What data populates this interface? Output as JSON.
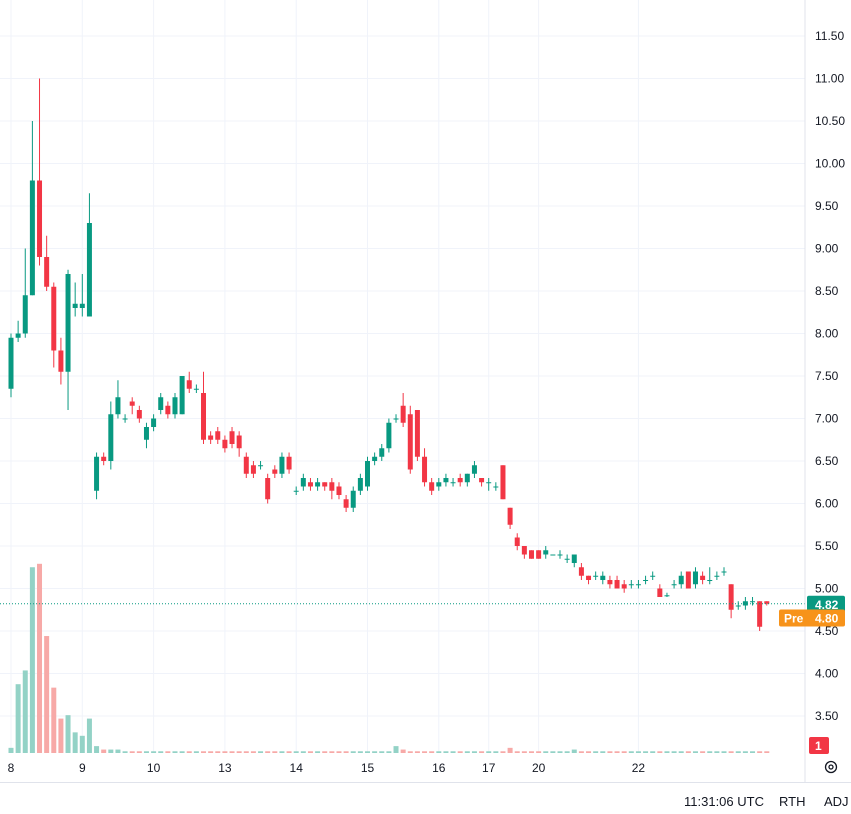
{
  "chart_data": {
    "type": "candlestick",
    "y_ticks": [
      "11.50",
      "11.00",
      "10.50",
      "10.00",
      "9.50",
      "9.00",
      "8.50",
      "8.00",
      "7.50",
      "7.00",
      "6.50",
      "6.00",
      "5.50",
      "5.00",
      "4.50",
      "4.00",
      "3.50"
    ],
    "x_labels": [
      {
        "text": "8",
        "i": 0
      },
      {
        "text": "9",
        "i": 10
      },
      {
        "text": "10",
        "i": 20
      },
      {
        "text": "13",
        "i": 30
      },
      {
        "text": "14",
        "i": 40
      },
      {
        "text": "15",
        "i": 50
      },
      {
        "text": "16",
        "i": 60
      },
      {
        "text": "17",
        "i": 67
      },
      {
        "text": "20",
        "i": 74
      },
      {
        "text": "22",
        "i": 88
      }
    ],
    "ylim": [
      3.3,
      11.7
    ],
    "candles": [
      [
        7.35,
        7.95,
        7.25,
        8.0
      ],
      [
        7.95,
        8.0,
        7.9,
        8.15
      ],
      [
        8.0,
        8.45,
        7.95,
        9.0
      ],
      [
        8.45,
        9.8,
        8.45,
        10.5
      ],
      [
        9.8,
        8.9,
        8.8,
        11.0
      ],
      [
        8.9,
        8.55,
        8.5,
        9.15
      ],
      [
        8.55,
        7.8,
        7.6,
        8.6
      ],
      [
        7.8,
        7.55,
        7.4,
        7.95
      ],
      [
        7.55,
        8.7,
        7.1,
        8.75
      ],
      [
        8.3,
        8.35,
        8.2,
        8.6
      ],
      [
        8.3,
        8.35,
        8.2,
        8.7
      ],
      [
        8.2,
        9.3,
        8.2,
        9.65
      ],
      [
        6.15,
        6.55,
        6.05,
        6.6
      ],
      [
        6.55,
        6.5,
        6.45,
        6.6
      ],
      [
        6.5,
        7.05,
        6.4,
        7.2
      ],
      [
        7.05,
        7.25,
        7.0,
        7.45
      ],
      [
        7.0,
        7.0,
        6.95,
        7.05
      ],
      [
        7.2,
        7.15,
        7.05,
        7.25
      ],
      [
        7.1,
        7.0,
        6.95,
        7.15
      ],
      [
        6.75,
        6.9,
        6.65,
        6.95
      ],
      [
        6.9,
        7.0,
        6.85,
        7.05
      ],
      [
        7.1,
        7.25,
        7.05,
        7.3
      ],
      [
        7.15,
        7.05,
        7.0,
        7.2
      ],
      [
        7.05,
        7.25,
        7.0,
        7.3
      ],
      [
        7.05,
        7.5,
        7.05,
        7.5
      ],
      [
        7.45,
        7.35,
        7.3,
        7.55
      ],
      [
        7.35,
        7.35,
        7.3,
        7.4
      ],
      [
        7.3,
        6.75,
        6.7,
        7.55
      ],
      [
        6.8,
        6.75,
        6.7,
        6.85
      ],
      [
        6.85,
        6.75,
        6.7,
        6.9
      ],
      [
        6.75,
        6.65,
        6.6,
        6.8
      ],
      [
        6.85,
        6.7,
        6.65,
        6.9
      ],
      [
        6.8,
        6.65,
        6.55,
        6.85
      ],
      [
        6.55,
        6.35,
        6.3,
        6.6
      ],
      [
        6.45,
        6.35,
        6.3,
        6.5
      ],
      [
        6.45,
        6.45,
        6.4,
        6.5
      ],
      [
        6.3,
        6.05,
        6.0,
        6.35
      ],
      [
        6.4,
        6.35,
        6.3,
        6.45
      ],
      [
        6.35,
        6.55,
        6.3,
        6.6
      ],
      [
        6.55,
        6.4,
        6.35,
        6.6
      ],
      [
        6.15,
        6.15,
        6.1,
        6.2
      ],
      [
        6.2,
        6.3,
        6.15,
        6.35
      ],
      [
        6.25,
        6.2,
        6.15,
        6.3
      ],
      [
        6.2,
        6.25,
        6.15,
        6.3
      ],
      [
        6.25,
        6.2,
        6.15,
        6.25
      ],
      [
        6.25,
        6.15,
        6.05,
        6.3
      ],
      [
        6.2,
        6.1,
        6.05,
        6.25
      ],
      [
        6.05,
        5.95,
        5.9,
        6.1
      ],
      [
        5.95,
        6.15,
        5.9,
        6.2
      ],
      [
        6.15,
        6.3,
        6.1,
        6.35
      ],
      [
        6.2,
        6.5,
        6.15,
        6.55
      ],
      [
        6.5,
        6.55,
        6.45,
        6.6
      ],
      [
        6.55,
        6.65,
        6.5,
        6.7
      ],
      [
        6.65,
        6.95,
        6.6,
        7.0
      ],
      [
        7.0,
        7.0,
        6.95,
        7.05
      ],
      [
        7.15,
        6.95,
        6.9,
        7.3
      ],
      [
        7.05,
        6.4,
        6.35,
        7.15
      ],
      [
        7.1,
        6.55,
        6.5,
        7.1
      ],
      [
        6.55,
        6.25,
        6.2,
        6.65
      ],
      [
        6.25,
        6.15,
        6.1,
        6.3
      ],
      [
        6.2,
        6.25,
        6.15,
        6.3
      ],
      [
        6.25,
        6.3,
        6.2,
        6.35
      ],
      [
        6.25,
        6.25,
        6.2,
        6.3
      ],
      [
        6.3,
        6.25,
        6.2,
        6.35
      ],
      [
        6.25,
        6.35,
        6.2,
        6.35
      ],
      [
        6.35,
        6.45,
        6.3,
        6.5
      ],
      [
        6.3,
        6.25,
        6.2,
        6.3
      ],
      [
        6.25,
        6.25,
        6.15,
        6.3
      ],
      [
        6.2,
        6.2,
        6.15,
        6.25
      ],
      [
        6.45,
        6.05,
        6.05,
        6.45
      ],
      [
        5.95,
        5.75,
        5.7,
        5.95
      ],
      [
        5.6,
        5.5,
        5.45,
        5.65
      ],
      [
        5.5,
        5.4,
        5.35,
        5.5
      ],
      [
        5.45,
        5.35,
        5.35,
        5.45
      ],
      [
        5.45,
        5.35,
        5.35,
        5.45
      ],
      [
        5.4,
        5.45,
        5.35,
        5.5
      ],
      [
        5.4,
        5.4,
        5.4,
        5.4
      ],
      [
        5.4,
        5.4,
        5.35,
        5.45
      ],
      [
        5.35,
        5.35,
        5.3,
        5.4
      ],
      [
        5.3,
        5.4,
        5.25,
        5.4
      ],
      [
        5.25,
        5.15,
        5.1,
        5.3
      ],
      [
        5.15,
        5.1,
        5.05,
        5.15
      ],
      [
        5.15,
        5.15,
        5.1,
        5.2
      ],
      [
        5.1,
        5.15,
        5.05,
        5.2
      ],
      [
        5.1,
        5.05,
        5.0,
        5.15
      ],
      [
        5.1,
        5.0,
        5.0,
        5.15
      ],
      [
        5.05,
        5.0,
        4.95,
        5.1
      ],
      [
        5.05,
        5.05,
        5.0,
        5.1
      ],
      [
        5.05,
        5.05,
        5.0,
        5.1
      ],
      [
        5.1,
        5.1,
        5.05,
        5.15
      ],
      [
        5.15,
        5.15,
        5.1,
        5.2
      ],
      [
        5.0,
        4.9,
        4.9,
        5.05
      ],
      [
        4.92,
        4.92,
        4.9,
        4.95
      ],
      [
        5.05,
        5.05,
        5.0,
        5.1
      ],
      [
        5.05,
        5.15,
        5.0,
        5.2
      ],
      [
        5.2,
        5.0,
        5.0,
        5.2
      ],
      [
        5.05,
        5.2,
        5.0,
        5.25
      ],
      [
        5.15,
        5.1,
        5.05,
        5.2
      ],
      [
        5.1,
        5.1,
        5.05,
        5.25
      ],
      [
        5.15,
        5.15,
        5.1,
        5.2
      ],
      [
        5.2,
        5.2,
        5.15,
        5.25
      ],
      [
        5.05,
        4.75,
        4.65,
        5.05
      ],
      [
        4.8,
        4.8,
        4.75,
        4.85
      ],
      [
        4.8,
        4.85,
        4.75,
        4.9
      ],
      [
        4.85,
        4.85,
        4.8,
        4.9
      ],
      [
        4.85,
        4.55,
        4.5,
        4.85
      ],
      [
        4.85,
        4.82,
        4.8,
        4.85
      ]
    ],
    "volumes": [
      3,
      40,
      48,
      108,
      110,
      68,
      38,
      20,
      22,
      12,
      10,
      20,
      4,
      2,
      2,
      2,
      1,
      1,
      1,
      1,
      1,
      1,
      1,
      1,
      1,
      1,
      1,
      1,
      1,
      1,
      1,
      1,
      1,
      1,
      1,
      1,
      1,
      1,
      1,
      1,
      1,
      1,
      1,
      1,
      1,
      1,
      1,
      1,
      1,
      1,
      1,
      1,
      1,
      1,
      4,
      2,
      1,
      1,
      1,
      1,
      1,
      1,
      1,
      1,
      1,
      1,
      1,
      1,
      1,
      1,
      3,
      1,
      1,
      1,
      1,
      1,
      1,
      1,
      1,
      2,
      1,
      1,
      1,
      1,
      1,
      1,
      1,
      1,
      1,
      1,
      1,
      1,
      1,
      1,
      1,
      1,
      1,
      1,
      1,
      1,
      1,
      1,
      1,
      1,
      1,
      1,
      1,
      1,
      1
    ],
    "last_price": "4.82",
    "premarket_label": "Pre",
    "premarket_price": "4.80",
    "volume_badge": "1",
    "colors": {
      "up": "#089981",
      "down": "#f23645",
      "up_vol": "#93d2c6",
      "down_vol": "#f7a9a7",
      "last": "#089981",
      "pre": "#f7931a",
      "grid": "#f0f3fa"
    }
  },
  "footer": {
    "time": "11:31:06 UTC",
    "session": "RTH",
    "adj": "ADJ"
  },
  "icons": {
    "settings": "gear-icon"
  }
}
